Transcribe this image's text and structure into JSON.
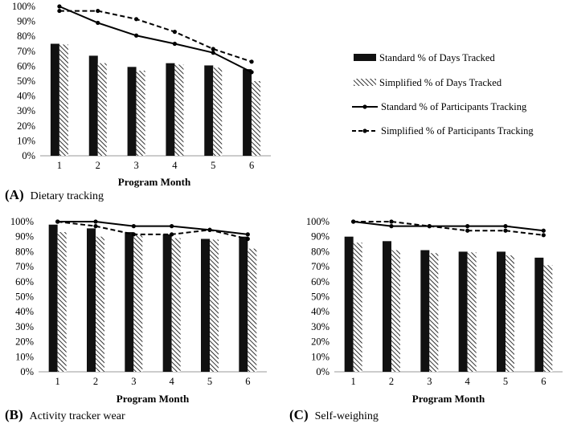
{
  "legend": {
    "items": [
      {
        "key": "std_days",
        "label": "Standard % of Days Tracked",
        "style": "solid-bar"
      },
      {
        "key": "simp_days",
        "label": "Simplified % of Days Tracked",
        "style": "hatched-bar"
      },
      {
        "key": "std_part",
        "label": "Standard % of Participants Tracking",
        "style": "solid-line"
      },
      {
        "key": "simp_part",
        "label": "Simplified % of Participants Tracking",
        "style": "dashed-line"
      }
    ]
  },
  "chart_data": [
    {
      "panel": "A",
      "title": "Dietary tracking",
      "type": "bar",
      "xlabel": "Program Month",
      "ylabel": "",
      "categories": [
        "1",
        "2",
        "3",
        "4",
        "5",
        "6"
      ],
      "ylim": [
        0,
        100
      ],
      "yticks": [
        0,
        10,
        20,
        30,
        40,
        50,
        60,
        70,
        80,
        90,
        100
      ],
      "tick_suffix": "%",
      "series": [
        {
          "name": "Standard % of Days Tracked",
          "kind": "bar",
          "values": [
            75,
            67,
            59.5,
            62,
            60.5,
            58
          ]
        },
        {
          "name": "Simplified % of Days Tracked",
          "kind": "bar",
          "values": [
            74.5,
            62,
            57,
            61,
            59,
            50
          ]
        },
        {
          "name": "Standard % of Participants Tracking",
          "kind": "line",
          "values": [
            100,
            89,
            80.5,
            75,
            69,
            56
          ]
        },
        {
          "name": "Simplified % of Participants Tracking",
          "kind": "line",
          "values": [
            97,
            97,
            91.5,
            83,
            71.5,
            63
          ]
        }
      ]
    },
    {
      "panel": "B",
      "title": "Activity tracker wear",
      "type": "bar",
      "xlabel": "Program Month",
      "ylabel": "",
      "categories": [
        "1",
        "2",
        "3",
        "4",
        "5",
        "6"
      ],
      "ylim": [
        0,
        100
      ],
      "yticks": [
        0,
        10,
        20,
        30,
        40,
        50,
        60,
        70,
        80,
        90,
        100
      ],
      "tick_suffix": "%",
      "series": [
        {
          "name": "Standard % of Days Tracked",
          "kind": "bar",
          "values": [
            98,
            95.5,
            93,
            91.5,
            88.5,
            90
          ]
        },
        {
          "name": "Simplified % of Days Tracked",
          "kind": "bar",
          "values": [
            93,
            90,
            91,
            89,
            88,
            82
          ]
        },
        {
          "name": "Standard % of Participants Tracking",
          "kind": "line",
          "values": [
            100,
            100,
            97,
            97,
            94.5,
            91.5
          ]
        },
        {
          "name": "Simplified % of Participants Tracking",
          "kind": "line",
          "values": [
            100,
            97,
            91.5,
            91.5,
            94.5,
            88.5
          ]
        }
      ]
    },
    {
      "panel": "C",
      "title": "Self-weighing",
      "type": "bar",
      "xlabel": "Program Month",
      "ylabel": "",
      "categories": [
        "1",
        "2",
        "3",
        "4",
        "5",
        "6"
      ],
      "ylim": [
        0,
        100
      ],
      "yticks": [
        0,
        10,
        20,
        30,
        40,
        50,
        60,
        70,
        80,
        90,
        100
      ],
      "tick_suffix": "%",
      "series": [
        {
          "name": "Standard % of Days Tracked",
          "kind": "bar",
          "values": [
            90,
            87,
            81,
            80,
            80,
            76
          ]
        },
        {
          "name": "Simplified % of Days Tracked",
          "kind": "bar",
          "values": [
            86,
            81,
            79,
            79.5,
            77.5,
            71
          ]
        },
        {
          "name": "Standard % of Participants Tracking",
          "kind": "line",
          "values": [
            100,
            97,
            97,
            97,
            97,
            94
          ]
        },
        {
          "name": "Simplified % of Participants Tracking",
          "kind": "line",
          "values": [
            100,
            100,
            97,
            94,
            94,
            91
          ]
        }
      ]
    }
  ]
}
